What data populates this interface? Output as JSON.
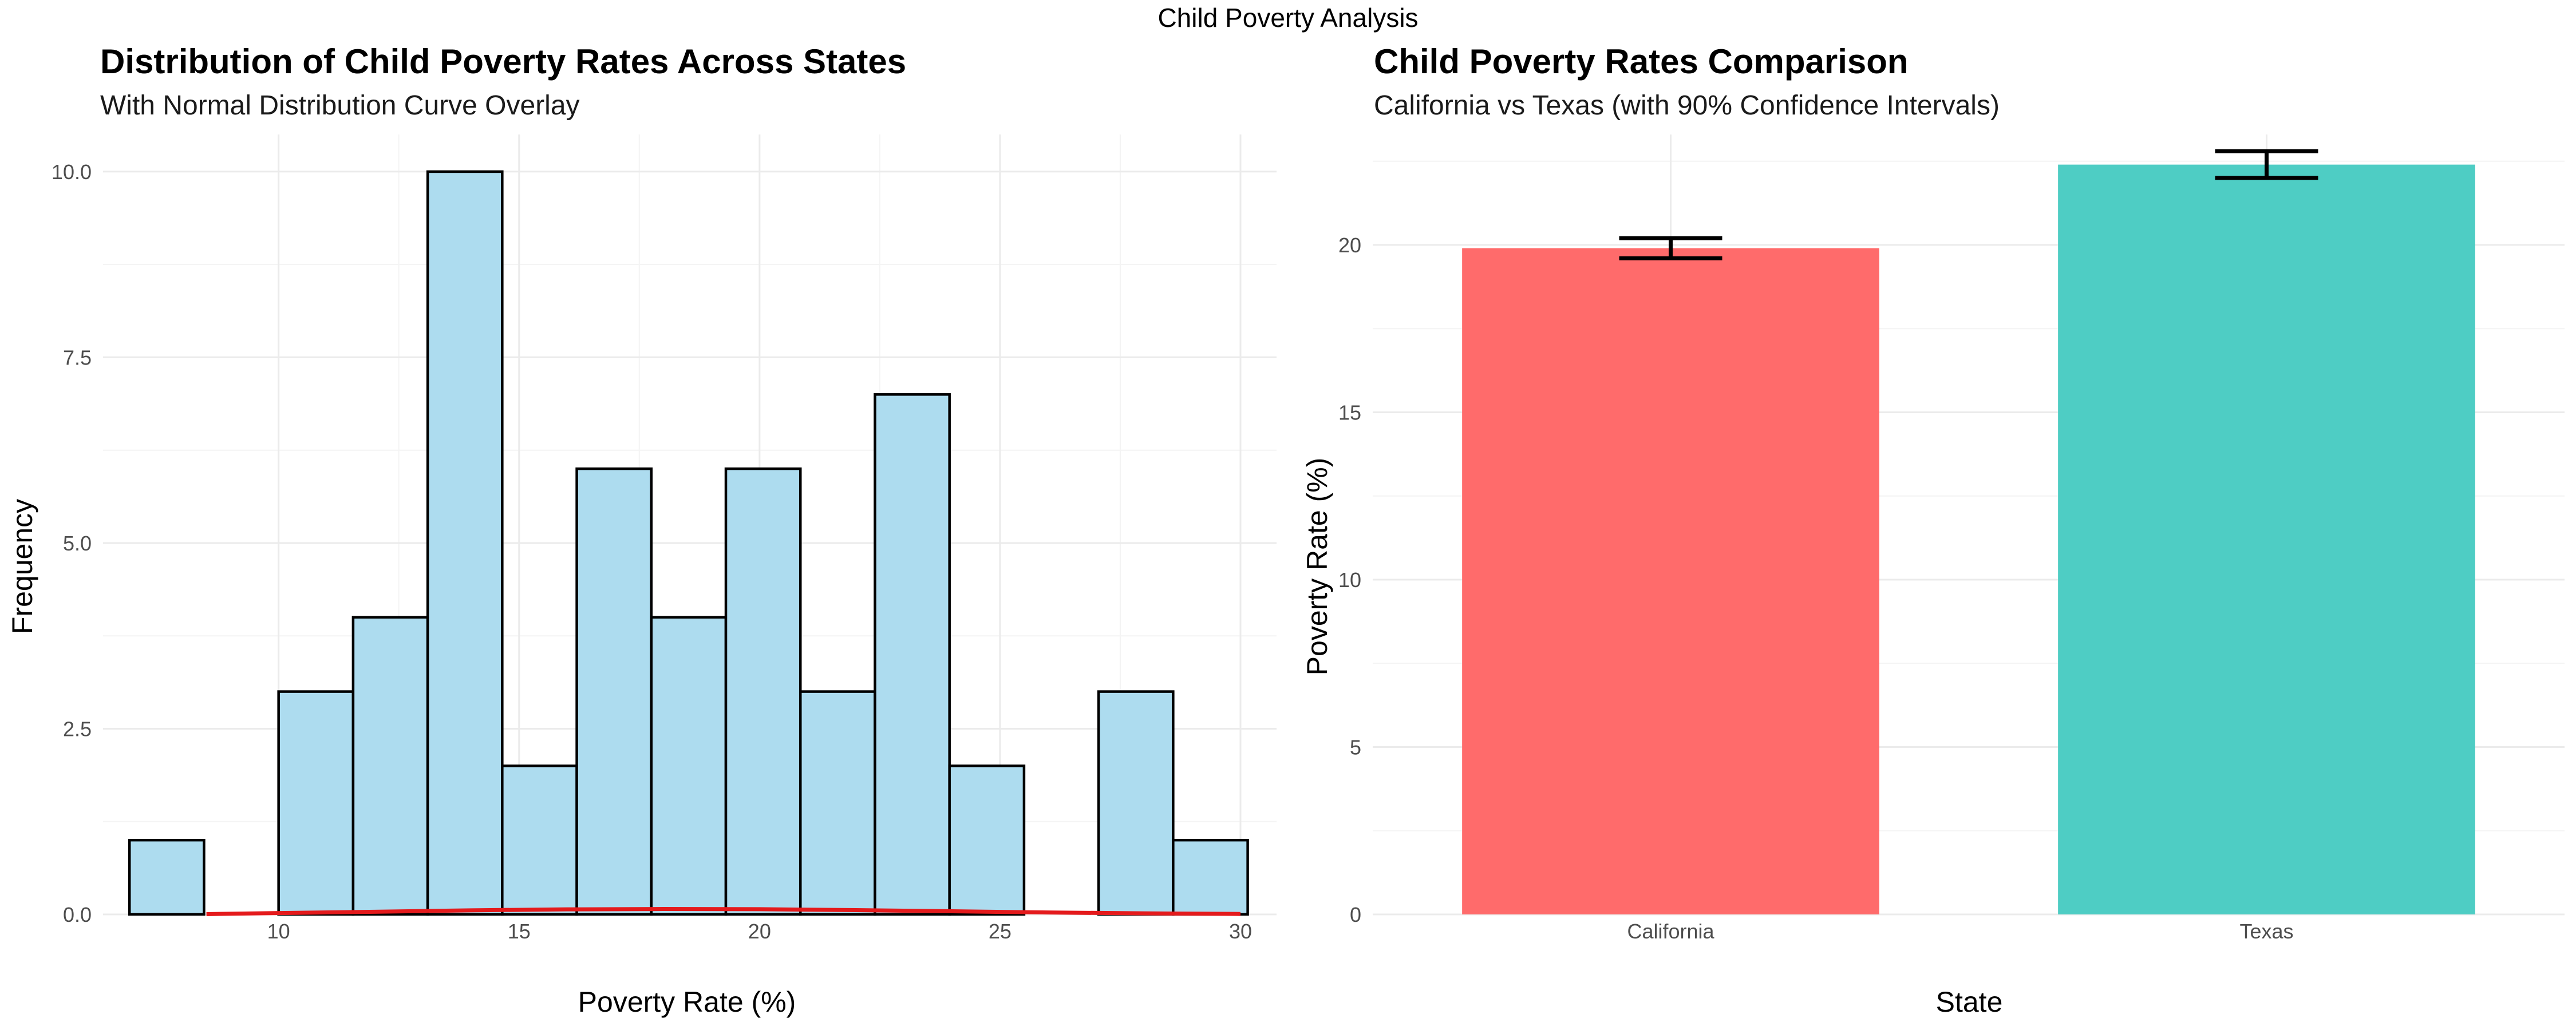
{
  "figure": {
    "title": "Child Poverty Analysis"
  },
  "chart_data": [
    {
      "type": "bar",
      "subtype": "histogram",
      "title": "Distribution of Child Poverty Rates Across States",
      "subtitle": "With Normal Distribution Curve Overlay",
      "xlabel": "Poverty Rate (%)",
      "ylabel": "Frequency",
      "xlim": [
        6.35,
        30.75
      ],
      "ylim": [
        0,
        10.5
      ],
      "x_ticks": [
        10,
        15,
        20,
        25,
        30
      ],
      "x_tick_labels": [
        "10",
        "15",
        "20",
        "25",
        "30"
      ],
      "y_ticks": [
        0,
        2.5,
        5,
        7.5,
        10
      ],
      "y_tick_labels": [
        "0.0",
        "2.5",
        "5.0",
        "7.5",
        "10.0"
      ],
      "bin_width": 1.55,
      "bins": [
        {
          "start": 6.9,
          "end": 8.45,
          "count": 1
        },
        {
          "start": 8.45,
          "end": 10.0,
          "count": 0
        },
        {
          "start": 10.0,
          "end": 11.55,
          "count": 3
        },
        {
          "start": 11.55,
          "end": 13.1,
          "count": 4
        },
        {
          "start": 13.1,
          "end": 14.65,
          "count": 10
        },
        {
          "start": 14.65,
          "end": 16.2,
          "count": 2
        },
        {
          "start": 16.2,
          "end": 17.75,
          "count": 6
        },
        {
          "start": 17.75,
          "end": 19.3,
          "count": 4
        },
        {
          "start": 19.3,
          "end": 20.85,
          "count": 6
        },
        {
          "start": 20.85,
          "end": 22.4,
          "count": 3
        },
        {
          "start": 22.4,
          "end": 23.95,
          "count": 7
        },
        {
          "start": 23.95,
          "end": 25.5,
          "count": 2
        },
        {
          "start": 25.5,
          "end": 27.05,
          "count": 0
        },
        {
          "start": 27.05,
          "end": 28.6,
          "count": 3
        },
        {
          "start": 28.6,
          "end": 30.15,
          "count": 1
        }
      ],
      "normal_curve": {
        "x": [
          8.5,
          10,
          12,
          14,
          16,
          18,
          20,
          22,
          24,
          26,
          28,
          30
        ],
        "y": [
          0.004,
          0.018,
          0.036,
          0.055,
          0.068,
          0.073,
          0.07,
          0.058,
          0.042,
          0.026,
          0.014,
          0.006
        ]
      },
      "colors": {
        "bar_fill": "#ADDCEF",
        "bar_stroke": "#000000",
        "curve": "#E41A1C"
      },
      "grid": true
    },
    {
      "type": "bar",
      "title": "Child Poverty Rates Comparison",
      "subtitle": "California vs Texas (with 90% Confidence Intervals)",
      "xlabel": "State",
      "ylabel": "Poverty Rate (%)",
      "categories": [
        "California",
        "Texas"
      ],
      "values": [
        19.9,
        22.4
      ],
      "ci_lower": [
        19.6,
        22.0
      ],
      "ci_upper": [
        20.2,
        22.8
      ],
      "ylim": [
        0,
        23.3
      ],
      "y_ticks": [
        0,
        5,
        10,
        15,
        20
      ],
      "y_tick_labels": [
        "0",
        "5",
        "10",
        "15",
        "20"
      ],
      "colors": [
        "#FF6B6B",
        "#4ECDC4"
      ],
      "grid": true
    }
  ]
}
